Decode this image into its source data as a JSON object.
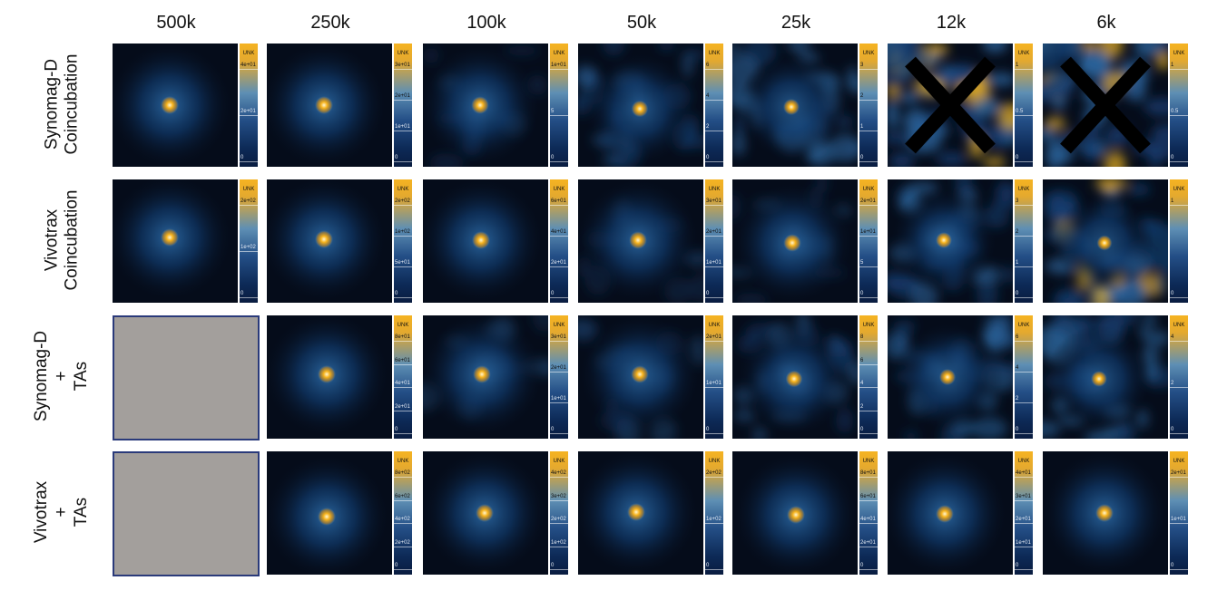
{
  "columns": [
    "500k",
    "250k",
    "100k",
    "50k",
    "25k",
    "12k",
    "6k"
  ],
  "colorbar_unit": "UNK",
  "colors": {
    "accent_hot": "#f6b21b",
    "background_dark": "#050c1a",
    "mid_blue": "#2d6098",
    "placeholder_gray": "#a39f9c",
    "placeholder_border": "#2a3a7a",
    "cross": "#000000"
  },
  "rows": [
    {
      "label_lines": [
        "Synomag-D",
        "Coincubation"
      ],
      "cells": [
        {
          "type": "image",
          "noise": 0.0,
          "cross": false,
          "ticks": [
            "4e+01",
            "2e+01",
            "0"
          ]
        },
        {
          "type": "image",
          "noise": 0.0,
          "cross": false,
          "ticks": [
            "3e+01",
            "2e+01",
            "1e+01",
            "0"
          ]
        },
        {
          "type": "image",
          "noise": 0.1,
          "cross": false,
          "ticks": [
            "1e+01",
            "5",
            "0"
          ]
        },
        {
          "type": "image",
          "noise": 0.35,
          "cross": false,
          "ticks": [
            "6",
            "4",
            "2",
            "0"
          ]
        },
        {
          "type": "image",
          "noise": 0.5,
          "cross": false,
          "ticks": [
            "3",
            "2",
            "1",
            "0"
          ]
        },
        {
          "type": "image",
          "noise": 0.85,
          "cross": true,
          "ticks": [
            "1",
            "0.5",
            "0"
          ]
        },
        {
          "type": "image",
          "noise": 0.85,
          "cross": true,
          "ticks": [
            "1",
            "0.5",
            "0"
          ]
        }
      ]
    },
    {
      "label_lines": [
        "Vivotrax",
        "Coincubation"
      ],
      "cells": [
        {
          "type": "image",
          "noise": 0.0,
          "cross": false,
          "ticks": [
            "2e+02",
            "1e+02",
            "0"
          ]
        },
        {
          "type": "image",
          "noise": 0.0,
          "cross": false,
          "ticks": [
            "2e+02",
            "1e+02",
            "5e+01",
            "0"
          ]
        },
        {
          "type": "image",
          "noise": 0.0,
          "cross": false,
          "ticks": [
            "6e+01",
            "4e+01",
            "2e+01",
            "0"
          ]
        },
        {
          "type": "image",
          "noise": 0.05,
          "cross": false,
          "ticks": [
            "3e+01",
            "2e+01",
            "1e+01",
            "0"
          ]
        },
        {
          "type": "image",
          "noise": 0.1,
          "cross": false,
          "ticks": [
            "2e+01",
            "1e+01",
            "5",
            "0"
          ]
        },
        {
          "type": "image",
          "noise": 0.5,
          "cross": false,
          "ticks": [
            "3",
            "2",
            "1",
            "0"
          ]
        },
        {
          "type": "image",
          "noise": 0.75,
          "cross": false,
          "ticks": [
            "1",
            "0"
          ]
        }
      ]
    },
    {
      "label_lines": [
        "Synomag-D",
        "+",
        "TAs"
      ],
      "cells": [
        {
          "type": "placeholder"
        },
        {
          "type": "image",
          "noise": 0.0,
          "cross": false,
          "ticks": [
            "8e+01",
            "6e+01",
            "4e+01",
            "2e+01",
            "0"
          ]
        },
        {
          "type": "image",
          "noise": 0.05,
          "cross": false,
          "ticks": [
            "3e+01",
            "2e+01",
            "1e+01",
            "0"
          ]
        },
        {
          "type": "image",
          "noise": 0.1,
          "cross": false,
          "ticks": [
            "2e+01",
            "1e+01",
            "0"
          ]
        },
        {
          "type": "image",
          "noise": 0.3,
          "cross": false,
          "ticks": [
            "8",
            "6",
            "4",
            "2",
            "0"
          ]
        },
        {
          "type": "image",
          "noise": 0.45,
          "cross": false,
          "ticks": [
            "6",
            "4",
            "2",
            "0"
          ]
        },
        {
          "type": "image",
          "noise": 0.55,
          "cross": false,
          "ticks": [
            "4",
            "2",
            "0"
          ]
        }
      ]
    },
    {
      "label_lines": [
        "Vivotrax",
        "+",
        "TAs"
      ],
      "cells": [
        {
          "type": "placeholder"
        },
        {
          "type": "image",
          "noise": 0.0,
          "cross": false,
          "ticks": [
            "8e+02",
            "6e+02",
            "4e+02",
            "2e+02",
            "0"
          ]
        },
        {
          "type": "image",
          "noise": 0.0,
          "cross": false,
          "ticks": [
            "4e+02",
            "3e+02",
            "2e+02",
            "1e+02",
            "0"
          ]
        },
        {
          "type": "image",
          "noise": 0.0,
          "cross": false,
          "ticks": [
            "2e+02",
            "1e+02",
            "0"
          ]
        },
        {
          "type": "image",
          "noise": 0.0,
          "cross": false,
          "ticks": [
            "8e+01",
            "6e+01",
            "4e+01",
            "2e+01",
            "0"
          ]
        },
        {
          "type": "image",
          "noise": 0.0,
          "cross": false,
          "ticks": [
            "4e+01",
            "3e+01",
            "2e+01",
            "1e+01",
            "0"
          ]
        },
        {
          "type": "image",
          "noise": 0.0,
          "cross": false,
          "ticks": [
            "2e+01",
            "1e+01",
            "0"
          ]
        }
      ]
    }
  ]
}
